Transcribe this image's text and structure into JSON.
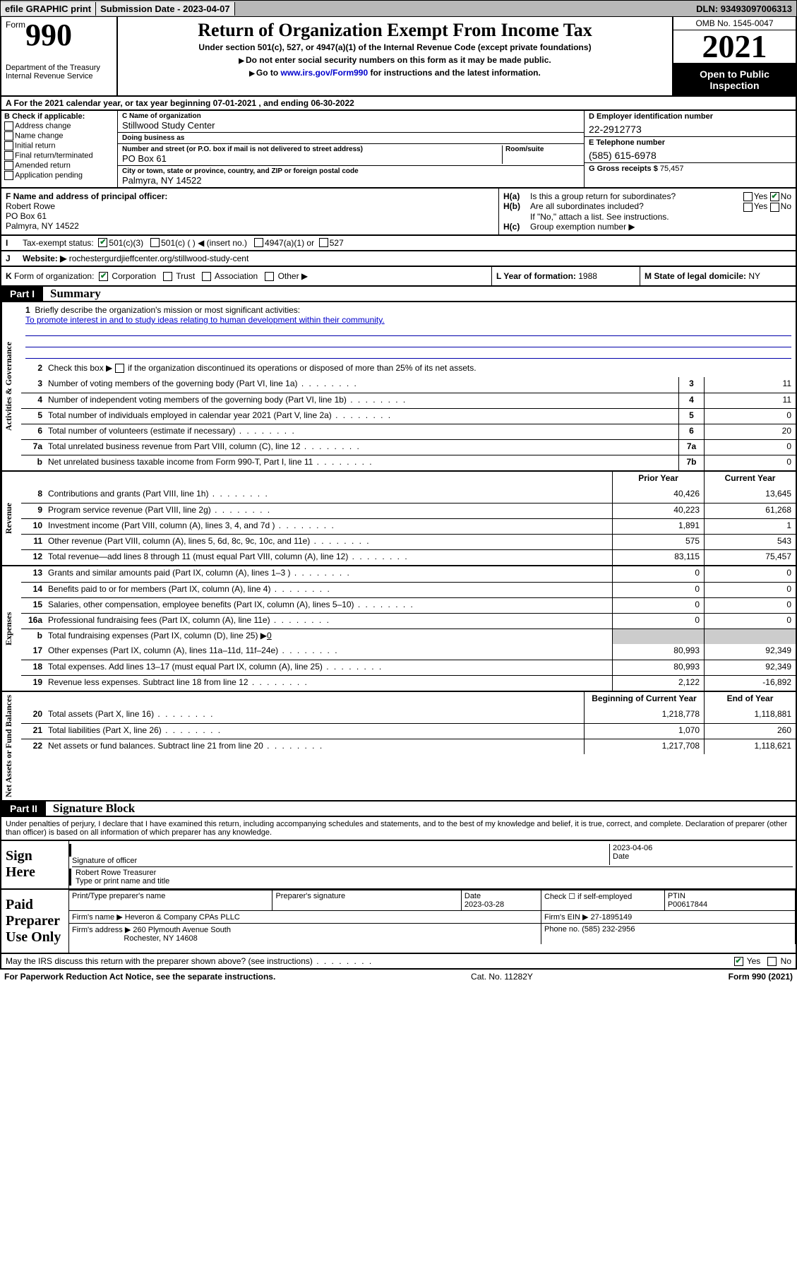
{
  "topbar": {
    "efile": "efile GRAPHIC print",
    "submission_label": "Submission Date - 2023-04-07",
    "dln": "DLN: 93493097006313"
  },
  "header": {
    "form_word": "Form",
    "form_num": "990",
    "dept": "Department of the Treasury",
    "service": "Internal Revenue Service",
    "title": "Return of Organization Exempt From Income Tax",
    "sub": "Under section 501(c), 527, or 4947(a)(1) of the Internal Revenue Code (except private foundations)",
    "note1": "Do not enter social security numbers on this form as it may be made public.",
    "note2_pre": "Go to ",
    "note2_link": "www.irs.gov/Form990",
    "note2_post": " for instructions and the latest information.",
    "omb": "OMB No. 1545-0047",
    "year": "2021",
    "open": "Open to Public Inspection"
  },
  "row_a": {
    "pre": "A  For the 2021 calendar year, or tax year beginning ",
    "begin": "07-01-2021",
    "mid": " , and ending ",
    "end": "06-30-2022"
  },
  "b": {
    "hdr": "B Check if applicable:",
    "items": [
      "Address change",
      "Name change",
      "Initial return",
      "Final return/terminated",
      "Amended return",
      "Application pending"
    ]
  },
  "c": {
    "name_lbl": "C Name of organization",
    "name": "Stillwood Study Center",
    "dba_lbl": "Doing business as",
    "dba": "",
    "addr_lbl": "Number and street (or P.O. box if mail is not delivered to street address)",
    "room_lbl": "Room/suite",
    "addr": "PO Box 61",
    "city_lbl": "City or town, state or province, country, and ZIP or foreign postal code",
    "city": "Palmyra, NY  14522"
  },
  "de": {
    "d_lbl": "D Employer identification number",
    "d_val": "22-2912773",
    "e_lbl": "E Telephone number",
    "e_val": "(585) 615-6978",
    "g_lbl": "G Gross receipts $ ",
    "g_val": "75,457"
  },
  "f": {
    "lbl": "F  Name and address of principal officer:",
    "name": "Robert Rowe",
    "addr1": "PO Box 61",
    "addr2": "Palmyra, NY  14522"
  },
  "h": {
    "a_letter": "H(a)",
    "a_q": "Is this a group return for subordinates?",
    "a_yes": "Yes",
    "a_no": "No",
    "b_letter": "H(b)",
    "b_q": "Are all subordinates included?",
    "b_note": "If \"No,\" attach a list. See instructions.",
    "c_letter": "H(c)",
    "c_q": "Group exemption number ▶"
  },
  "i": {
    "letter": "I",
    "lbl": "Tax-exempt status:",
    "o1": "501(c)(3)",
    "o2": "501(c) (  ) ◀ (insert no.)",
    "o3": "4947(a)(1) or",
    "o4": "527"
  },
  "j": {
    "letter": "J",
    "lbl": "Website: ▶",
    "val": "rochestergurdjieffcenter.org/stillwood-study-cent"
  },
  "k": {
    "letter": "K",
    "lbl": "Form of organization:",
    "o1": "Corporation",
    "o2": "Trust",
    "o3": "Association",
    "o4": "Other ▶"
  },
  "l": {
    "lbl": "L Year of formation: ",
    "val": "1988"
  },
  "m": {
    "lbl": "M State of legal domicile: ",
    "val": "NY"
  },
  "part1": {
    "tag": "Part I",
    "title": "Summary"
  },
  "vtabs": {
    "gov": "Activities & Governance",
    "rev": "Revenue",
    "exp": "Expenses",
    "net": "Net Assets or Fund Balances"
  },
  "mission": {
    "num": "1",
    "lbl": "Briefly describe the organization's mission or most significant activities:",
    "text": "To promote interest in and to study ideas relating to human development within their community."
  },
  "line2": {
    "num": "2",
    "text_pre": "Check this box ▶ ",
    "text_post": " if the organization discontinued its operations or disposed of more than 25% of its net assets."
  },
  "gov_lines": [
    {
      "num": "3",
      "desc": "Number of voting members of the governing body (Part VI, line 1a)",
      "ref": "3",
      "val": "11"
    },
    {
      "num": "4",
      "desc": "Number of independent voting members of the governing body (Part VI, line 1b)",
      "ref": "4",
      "val": "11"
    },
    {
      "num": "5",
      "desc": "Total number of individuals employed in calendar year 2021 (Part V, line 2a)",
      "ref": "5",
      "val": "0"
    },
    {
      "num": "6",
      "desc": "Total number of volunteers (estimate if necessary)",
      "ref": "6",
      "val": "20"
    },
    {
      "num": "7a",
      "desc": "Total unrelated business revenue from Part VIII, column (C), line 12",
      "ref": "7a",
      "val": "0"
    },
    {
      "num": "b",
      "desc": "Net unrelated business taxable income from Form 990-T, Part I, line 11",
      "ref": "7b",
      "val": "0"
    }
  ],
  "col_headers": {
    "prior": "Prior Year",
    "current": "Current Year",
    "begin": "Beginning of Current Year",
    "end": "End of Year"
  },
  "rev_lines": [
    {
      "num": "8",
      "desc": "Contributions and grants (Part VIII, line 1h)",
      "prior": "40,426",
      "curr": "13,645"
    },
    {
      "num": "9",
      "desc": "Program service revenue (Part VIII, line 2g)",
      "prior": "40,223",
      "curr": "61,268"
    },
    {
      "num": "10",
      "desc": "Investment income (Part VIII, column (A), lines 3, 4, and 7d )",
      "prior": "1,891",
      "curr": "1"
    },
    {
      "num": "11",
      "desc": "Other revenue (Part VIII, column (A), lines 5, 6d, 8c, 9c, 10c, and 11e)",
      "prior": "575",
      "curr": "543"
    },
    {
      "num": "12",
      "desc": "Total revenue—add lines 8 through 11 (must equal Part VIII, column (A), line 12)",
      "prior": "83,115",
      "curr": "75,457"
    }
  ],
  "exp_lines": [
    {
      "num": "13",
      "desc": "Grants and similar amounts paid (Part IX, column (A), lines 1–3 )",
      "prior": "0",
      "curr": "0"
    },
    {
      "num": "14",
      "desc": "Benefits paid to or for members (Part IX, column (A), line 4)",
      "prior": "0",
      "curr": "0"
    },
    {
      "num": "15",
      "desc": "Salaries, other compensation, employee benefits (Part IX, column (A), lines 5–10)",
      "prior": "0",
      "curr": "0"
    },
    {
      "num": "16a",
      "desc": "Professional fundraising fees (Part IX, column (A), line 11e)",
      "prior": "0",
      "curr": "0"
    }
  ],
  "line16b": {
    "num": "b",
    "desc": "Total fundraising expenses (Part IX, column (D), line 25) ▶",
    "val": "0"
  },
  "exp_lines2": [
    {
      "num": "17",
      "desc": "Other expenses (Part IX, column (A), lines 11a–11d, 11f–24e)",
      "prior": "80,993",
      "curr": "92,349"
    },
    {
      "num": "18",
      "desc": "Total expenses. Add lines 13–17 (must equal Part IX, column (A), line 25)",
      "prior": "80,993",
      "curr": "92,349"
    },
    {
      "num": "19",
      "desc": "Revenue less expenses. Subtract line 18 from line 12",
      "prior": "2,122",
      "curr": "-16,892"
    }
  ],
  "net_lines": [
    {
      "num": "20",
      "desc": "Total assets (Part X, line 16)",
      "prior": "1,218,778",
      "curr": "1,118,881"
    },
    {
      "num": "21",
      "desc": "Total liabilities (Part X, line 26)",
      "prior": "1,070",
      "curr": "260"
    },
    {
      "num": "22",
      "desc": "Net assets or fund balances. Subtract line 21 from line 20",
      "prior": "1,217,708",
      "curr": "1,118,621"
    }
  ],
  "part2": {
    "tag": "Part II",
    "title": "Signature Block"
  },
  "decl": "Under penalties of perjury, I declare that I have examined this return, including accompanying schedules and statements, and to the best of my knowledge and belief, it is true, correct, and complete. Declaration of preparer (other than officer) is based on all information of which preparer has any knowledge.",
  "sign": {
    "label": "Sign Here",
    "sig_lbl": "Signature of officer",
    "date_lbl": "Date",
    "date_val": "2023-04-06",
    "name": "Robert Rowe  Treasurer",
    "name_lbl": "Type or print name and title"
  },
  "prep": {
    "label": "Paid Preparer Use Only",
    "h1": "Print/Type preparer's name",
    "h2": "Preparer's signature",
    "h3": "Date",
    "h3v": "2023-03-28",
    "h4": "Check ☐ if self-employed",
    "h5": "PTIN",
    "h5v": "P00617844",
    "firm_lbl": "Firm's name   ▶",
    "firm": "Heveron & Company CPAs PLLC",
    "ein_lbl": "Firm's EIN ▶",
    "ein": "27-1895149",
    "addr_lbl": "Firm's address ▶",
    "addr1": "260 Plymouth Avenue South",
    "addr2": "Rochester, NY  14608",
    "phone_lbl": "Phone no.",
    "phone": "(585) 232-2956"
  },
  "irs_discuss": {
    "q": "May the IRS discuss this return with the preparer shown above? (see instructions)",
    "yes": "Yes",
    "no": "No"
  },
  "footer": {
    "left": "For Paperwork Reduction Act Notice, see the separate instructions.",
    "mid": "Cat. No. 11282Y",
    "right": "Form 990 (2021)"
  },
  "colors": {
    "topbar_bg": "#b8b8b8",
    "link": "#0000cc",
    "check": "#0a7a2a",
    "shade": "#cccccc"
  }
}
